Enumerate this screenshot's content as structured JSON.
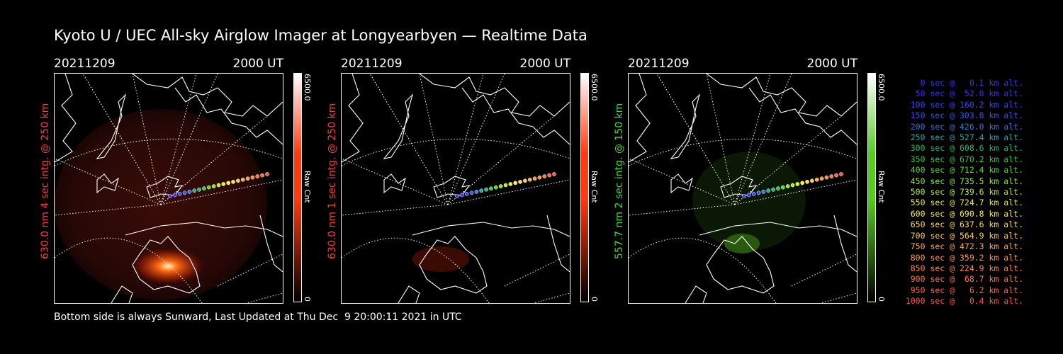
{
  "title": "Kyoto U / UEC All-sky Airglow Imager at Longyearbyen — Realtime Data",
  "footer": "Bottom side is always Sunward, Last Updated at Thu Dec  9 20:00:11 2021 in UTC",
  "panels": [
    {
      "date": "20211209",
      "time": "2000 UT",
      "side_label": "630.0 nm 4 sec intg. @ 250 km",
      "label_color": "#ff3b3b",
      "cbar_max": "6500.0",
      "cbar_min": "0",
      "cbar_unit": "Raw Cnt",
      "tint": "#ff3a10"
    },
    {
      "date": "20211209",
      "time": "2000 UT",
      "side_label": "630.0 nm 1 sec intg. @ 250 km",
      "label_color": "#ff3b3b",
      "cbar_max": "6500.0",
      "cbar_min": "0",
      "cbar_unit": "Raw Cnt",
      "tint": "#ff3a10"
    },
    {
      "date": "20211209",
      "time": "2000 UT",
      "side_label": "557.7 nm 2 sec intg. @ 150 km",
      "label_color": "#44dd33",
      "cbar_max": "6500.0",
      "cbar_min": "0",
      "cbar_unit": "Raw Cnt",
      "tint": "#55cc22"
    }
  ],
  "legend": [
    {
      "text": "0 sec @   0.1 km alt.",
      "color": "#3333ff"
    },
    {
      "text": "50 sec @  52.0 km alt.",
      "color": "#3333ff"
    },
    {
      "text": "100 sec @ 160.2 km alt.",
      "color": "#3344ff"
    },
    {
      "text": "150 sec @ 303.8 km alt.",
      "color": "#3355ee"
    },
    {
      "text": "200 sec @ 426.0 km alt.",
      "color": "#3377dd"
    },
    {
      "text": "250 sec @ 527.4 km alt.",
      "color": "#22aaaa"
    },
    {
      "text": "300 sec @ 608.6 km alt.",
      "color": "#22bb66"
    },
    {
      "text": "350 sec @ 670.2 km alt.",
      "color": "#33cc33"
    },
    {
      "text": "400 sec @ 712.4 km alt.",
      "color": "#55dd22"
    },
    {
      "text": "450 sec @ 735.5 km alt.",
      "color": "#88ee22"
    },
    {
      "text": "500 sec @ 739.6 km alt.",
      "color": "#bbee22"
    },
    {
      "text": "550 sec @ 724.7 km alt.",
      "color": "#eeee22"
    },
    {
      "text": "600 sec @ 690.8 km alt.",
      "color": "#ffee33"
    },
    {
      "text": "650 sec @ 637.6 km alt.",
      "color": "#ffdd44"
    },
    {
      "text": "700 sec @ 564.9 km alt.",
      "color": "#ffcc44"
    },
    {
      "text": "750 sec @ 472.3 km alt.",
      "color": "#ffaa44"
    },
    {
      "text": "800 sec @ 359.2 km alt.",
      "color": "#ff9944"
    },
    {
      "text": "850 sec @ 224.9 km alt.",
      "color": "#ff8844"
    },
    {
      "text": "900 sec @  68.7 km alt.",
      "color": "#ff7744"
    },
    {
      "text": "950 sec @   6.2 km alt.",
      "color": "#ff6644"
    },
    {
      "text": "1000 sec @   0.4 km alt.",
      "color": "#ff5544"
    }
  ]
}
